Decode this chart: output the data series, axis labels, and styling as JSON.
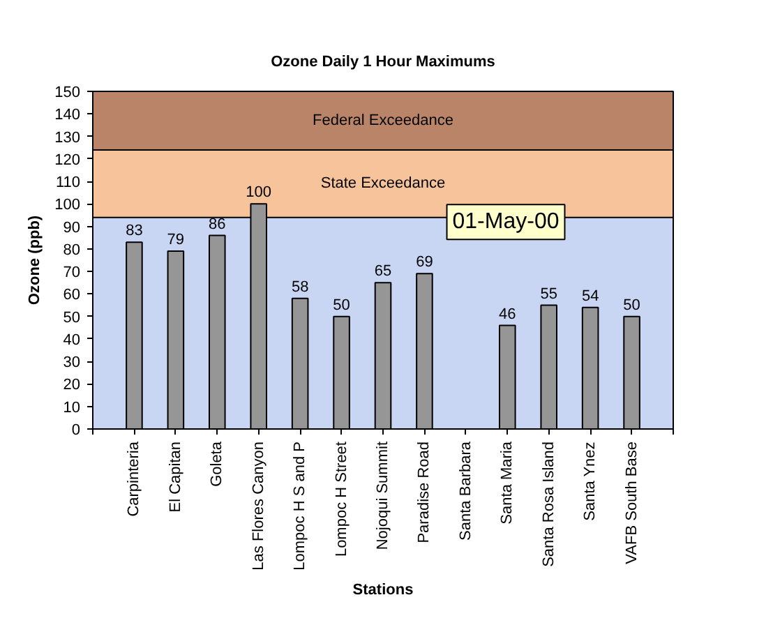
{
  "chart_data": {
    "type": "bar",
    "title": "Ozone Daily 1 Hour Maximums",
    "xlabel": "Stations",
    "ylabel": "Ozone (ppb)",
    "categories": [
      "Carpinteria",
      "El Capitan",
      "Goleta",
      "Las Flores Canyon",
      "Lompoc H S and P",
      "Lompoc H Street",
      "Nojoqui Summit",
      "Paradise Road",
      "Santa Barbara",
      "Santa Maria",
      "Santa Rosa Island",
      "Santa Ynez",
      "VAFB South Base"
    ],
    "values": [
      83,
      79,
      86,
      100,
      58,
      50,
      65,
      69,
      null,
      46,
      55,
      54,
      50
    ],
    "color": "#969696",
    "ylim": [
      0,
      150
    ],
    "yticks": [
      0,
      10,
      20,
      30,
      40,
      50,
      60,
      70,
      80,
      90,
      100,
      110,
      120,
      130,
      140,
      150
    ],
    "data_labels": true,
    "bands": [
      {
        "axis": "y",
        "from": 124,
        "to": 150,
        "label": "Federal Exceedance",
        "color": "#b98467"
      },
      {
        "axis": "y",
        "from": 94,
        "to": 124,
        "label": "State Exceedance",
        "color": "#f7c39a"
      }
    ],
    "annotations": [
      "01-May-00"
    ]
  }
}
